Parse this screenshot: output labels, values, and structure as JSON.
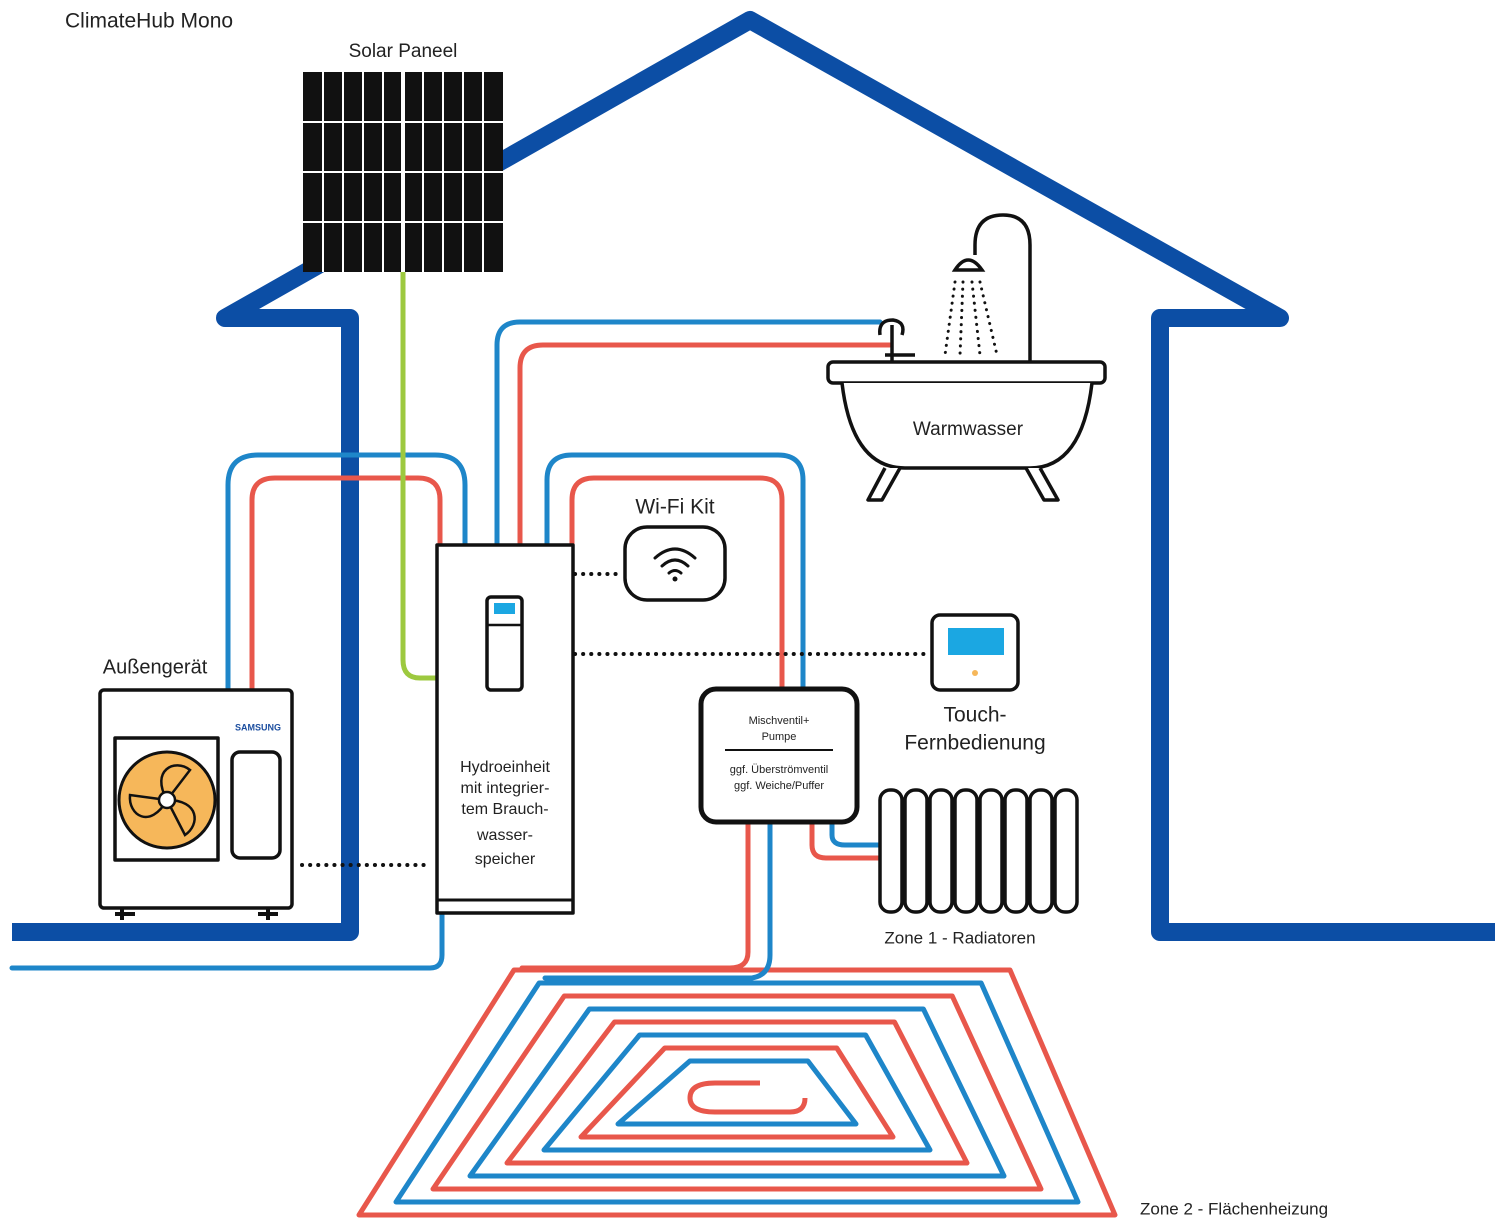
{
  "title": "ClimateHub Mono",
  "solar_panel": {
    "label": "Solar Paneel"
  },
  "hot_water": {
    "label": "Warmwasser"
  },
  "wifi_kit": {
    "label": "Wi-Fi Kit"
  },
  "outdoor_unit": {
    "label": "Außengerät",
    "brand": "SAMSUNG"
  },
  "hydro_unit": {
    "lines": [
      "Hydroeinheit",
      "mit integrier-",
      "tem Brauch-",
      "wasser-",
      "speicher"
    ]
  },
  "remote": {
    "lines": [
      "Touch-",
      "Fernbedienung"
    ]
  },
  "mixing_valve": {
    "top_lines": [
      "Mischventil+",
      "Pumpe"
    ],
    "bottom_lines": [
      "ggf. Überströmventil",
      "ggf. Weiche/Puffer"
    ]
  },
  "zone1": {
    "label": "Zone 1 - Radiatoren"
  },
  "zone2": {
    "label": "Zone 2 - Flächenheizung"
  }
}
